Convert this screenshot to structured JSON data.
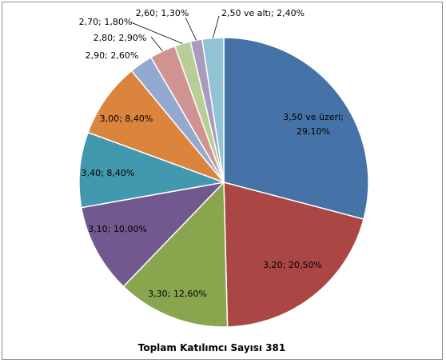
{
  "chart_data": {
    "type": "pie",
    "title": "Toplam Katılımcı Sayısı 381",
    "slices": [
      {
        "name": "3,50 ve üzeri",
        "value": 29.1,
        "label": "3,50 ve üzeri;",
        "label2": "29,10%",
        "color": "#4572a7"
      },
      {
        "name": "3,20",
        "value": 20.5,
        "label": "3,20; 20,50%",
        "color": "#aa4643"
      },
      {
        "name": "3,30",
        "value": 12.6,
        "label": "3,30; 12,60%",
        "color": "#89a54e"
      },
      {
        "name": "3,10",
        "value": 10.0,
        "label": "3,10; 10,00%",
        "color": "#71588f"
      },
      {
        "name": "3,40",
        "value": 8.4,
        "label": "3,40; 8,40%",
        "color": "#4198af"
      },
      {
        "name": "3,00",
        "value": 8.4,
        "label": "3,00; 8,40%",
        "color": "#db843d"
      },
      {
        "name": "2,90",
        "value": 2.6,
        "label": "2,90; 2,60%",
        "color": "#93a9cf"
      },
      {
        "name": "2,80",
        "value": 2.9,
        "label": "2,80; 2,90%",
        "color": "#d19392"
      },
      {
        "name": "2,70",
        "value": 1.8,
        "label": "2,70; 1,80%",
        "color": "#b9cd96"
      },
      {
        "name": "2,60",
        "value": 1.3,
        "label": "2,60; 1,30%",
        "color": "#a99bbd"
      },
      {
        "name": "2,50 ve altı",
        "value": 2.4,
        "label": "2,50 ve altı; 2,40%",
        "color": "#92c3d4"
      }
    ]
  }
}
